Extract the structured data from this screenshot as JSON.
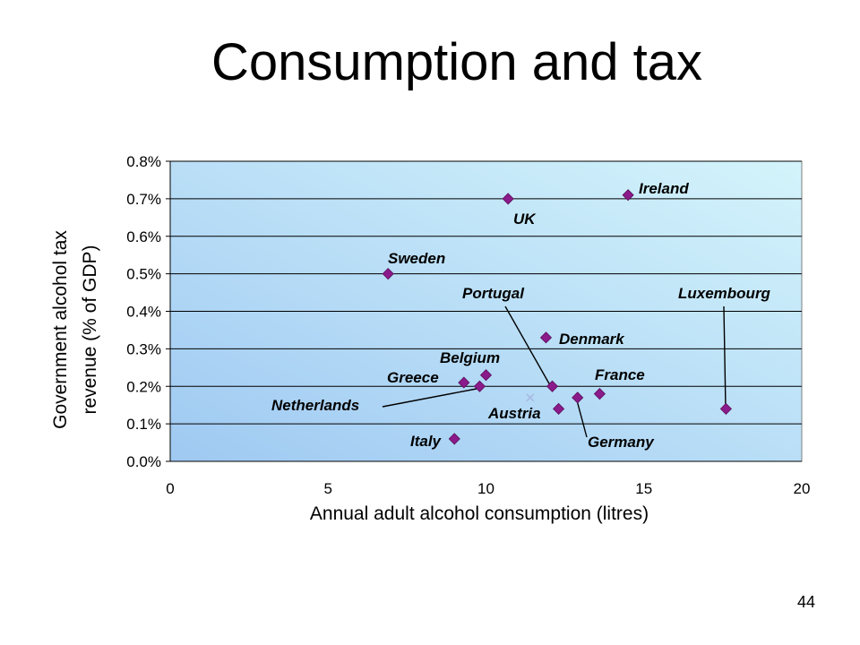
{
  "slide": {
    "title": "Consumption and tax",
    "page_number": "44"
  },
  "chart_data": {
    "type": "scatter",
    "title": "Consumption and tax",
    "xlabel": "Annual adult alcohol consumption (litres)",
    "ylabel": "Government alcohol tax revenue (% of GDP)",
    "ylabel_lines": [
      "Government alcohol tax",
      "revenue (% of GDP)"
    ],
    "xlim": [
      0,
      20
    ],
    "ylim": [
      0,
      0.8
    ],
    "x_ticks": [
      0,
      5,
      10,
      15,
      20
    ],
    "x_tick_labels": [
      "0",
      "5",
      "10",
      "15",
      "20"
    ],
    "y_ticks": [
      0,
      0.1,
      0.2,
      0.3,
      0.4,
      0.5,
      0.6,
      0.7,
      0.8
    ],
    "y_tick_labels": [
      "0.0%",
      "0.1%",
      "0.2%",
      "0.3%",
      "0.4%",
      "0.5%",
      "0.6%",
      "0.7%",
      "0.8%"
    ],
    "grid": "horizontal",
    "legend": "none",
    "colors": {
      "marker": "#8B1A8B",
      "plot_bg_light": "#D4F4FB",
      "plot_bg_dark": "#9FC9F2",
      "gridline": "#000000",
      "extra_marker": "#A8B8E0"
    },
    "points": [
      {
        "label": "Ireland",
        "x": 14.5,
        "y": 0.71
      },
      {
        "label": "UK",
        "x": 10.7,
        "y": 0.7
      },
      {
        "label": "Sweden",
        "x": 6.9,
        "y": 0.5
      },
      {
        "label": "Luxembourg",
        "x": 17.6,
        "y": 0.14
      },
      {
        "label": "Portugal",
        "x": 12.1,
        "y": 0.2
      },
      {
        "label": "Denmark",
        "x": 11.9,
        "y": 0.33
      },
      {
        "label": "Belgium",
        "x": 10.0,
        "y": 0.23
      },
      {
        "label": "Greece",
        "x": 9.3,
        "y": 0.21
      },
      {
        "label": "Netherlands",
        "x": 9.8,
        "y": 0.2
      },
      {
        "label": "France",
        "x": 13.6,
        "y": 0.18
      },
      {
        "label": "Germany",
        "x": 12.9,
        "y": 0.17
      },
      {
        "label": "Austria",
        "x": 12.3,
        "y": 0.14
      },
      {
        "label": "Italy",
        "x": 9.0,
        "y": 0.06
      }
    ],
    "extra_marks": [
      {
        "x": 11.4,
        "y": 0.17,
        "symbol": "x"
      }
    ]
  }
}
